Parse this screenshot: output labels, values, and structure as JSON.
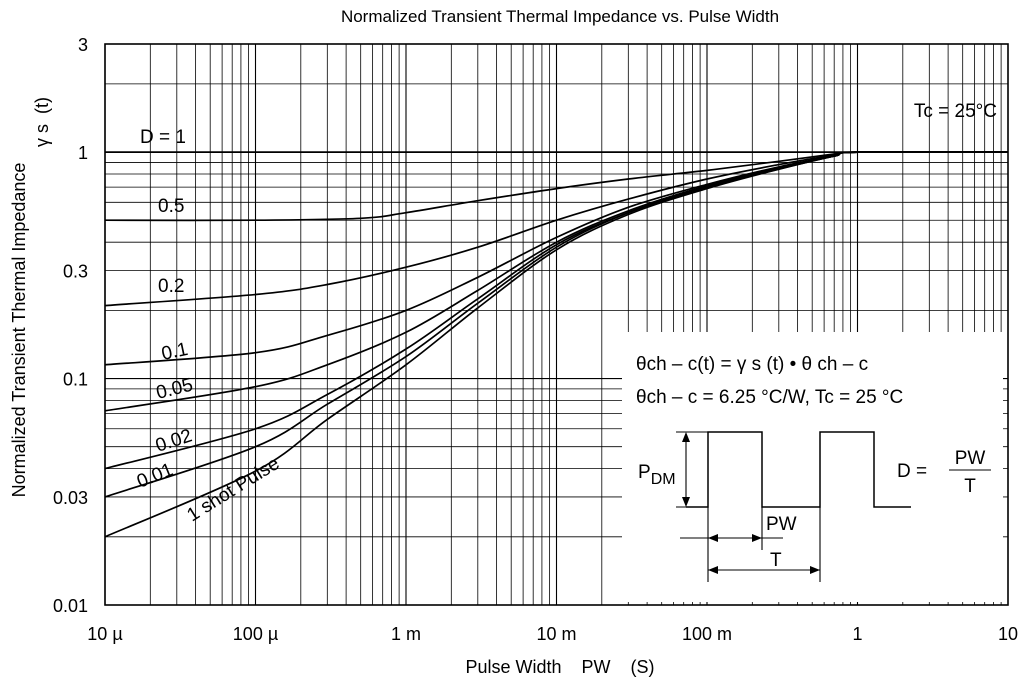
{
  "chart_data": {
    "type": "line",
    "title": "Normalized Transient Thermal Impedance vs. Pulse Width",
    "xlabel": "Pulse Width    PW    (S)",
    "ylabel": "Normalized Transient Thermal Impedance",
    "ylabel_symbol": "γ s  (t)",
    "x_scale": "log",
    "y_scale": "log",
    "xlim": [
      1e-05,
      10
    ],
    "ylim": [
      0.01,
      3
    ],
    "grid": true,
    "x_ticks": [
      {
        "value": 1e-05,
        "label": "10 µ"
      },
      {
        "value": 0.0001,
        "label": "100 µ"
      },
      {
        "value": 0.001,
        "label": "1 m"
      },
      {
        "value": 0.01,
        "label": "10 m"
      },
      {
        "value": 0.1,
        "label": "100 m"
      },
      {
        "value": 1,
        "label": "1"
      },
      {
        "value": 10,
        "label": "10"
      }
    ],
    "y_ticks": [
      {
        "value": 3,
        "label": "3"
      },
      {
        "value": 1,
        "label": "1"
      },
      {
        "value": 0.3,
        "label": "0.3"
      },
      {
        "value": 0.1,
        "label": "0.1"
      },
      {
        "value": 0.03,
        "label": "0.03"
      },
      {
        "value": 0.01,
        "label": "0.01"
      }
    ],
    "series": [
      {
        "name": "D = 1",
        "x": [
          1e-05,
          10
        ],
        "y": [
          1,
          1
        ]
      },
      {
        "name": "0.5",
        "x": [
          1e-05,
          0.0001,
          0.0005,
          0.001,
          0.003,
          0.01,
          0.03,
          0.1,
          0.3,
          0.7,
          1,
          10
        ],
        "y": [
          0.5,
          0.5,
          0.51,
          0.54,
          0.61,
          0.69,
          0.76,
          0.83,
          0.91,
          0.98,
          1,
          1
        ]
      },
      {
        "name": "0.2",
        "x": [
          1e-05,
          0.0001,
          0.0003,
          0.001,
          0.003,
          0.01,
          0.03,
          0.1,
          0.3,
          0.7,
          1,
          10
        ],
        "y": [
          0.21,
          0.235,
          0.26,
          0.31,
          0.38,
          0.5,
          0.62,
          0.76,
          0.88,
          0.97,
          1,
          1
        ]
      },
      {
        "name": "0.1",
        "x": [
          1e-05,
          0.0001,
          0.0003,
          0.001,
          0.003,
          0.01,
          0.03,
          0.1,
          0.3,
          0.7,
          1,
          10
        ],
        "y": [
          0.115,
          0.13,
          0.155,
          0.2,
          0.28,
          0.42,
          0.57,
          0.72,
          0.86,
          0.96,
          1,
          1
        ]
      },
      {
        "name": "0.05",
        "x": [
          1e-05,
          0.0001,
          0.0003,
          0.001,
          0.003,
          0.01,
          0.03,
          0.1,
          0.3,
          0.7,
          1,
          10
        ],
        "y": [
          0.072,
          0.092,
          0.115,
          0.16,
          0.245,
          0.4,
          0.55,
          0.71,
          0.85,
          0.96,
          1,
          1
        ]
      },
      {
        "name": "0.02",
        "x": [
          1e-05,
          0.0001,
          0.0003,
          0.001,
          0.003,
          0.01,
          0.03,
          0.1,
          0.3,
          0.7,
          1,
          10
        ],
        "y": [
          0.04,
          0.06,
          0.085,
          0.135,
          0.225,
          0.39,
          0.54,
          0.7,
          0.85,
          0.96,
          1,
          1
        ]
      },
      {
        "name": "0.01",
        "x": [
          1e-05,
          0.0001,
          0.0003,
          0.001,
          0.003,
          0.01,
          0.03,
          0.1,
          0.3,
          0.7,
          1,
          10
        ],
        "y": [
          0.03,
          0.05,
          0.077,
          0.125,
          0.215,
          0.38,
          0.54,
          0.7,
          0.84,
          0.96,
          1,
          1
        ]
      },
      {
        "name": "1 shot Pulse",
        "x": [
          1e-05,
          0.0001,
          0.0003,
          0.001,
          0.003,
          0.01,
          0.03,
          0.1,
          0.3,
          0.7,
          1,
          10
        ],
        "y": [
          0.02,
          0.039,
          0.066,
          0.115,
          0.205,
          0.37,
          0.53,
          0.69,
          0.84,
          0.96,
          1,
          1
        ]
      }
    ],
    "annotations": {
      "tc": "Tc = 25°C",
      "formula1": "θch – c(t) = γ s (t) • θ ch – c",
      "formula2": "θch – c = 6.25 °C/W, Tc = 25 °C",
      "pdm": "P",
      "pdm_sub": "DM",
      "d_label": "D =",
      "d_num": "PW",
      "d_den": "T",
      "pw": "PW",
      "t": "T"
    }
  }
}
